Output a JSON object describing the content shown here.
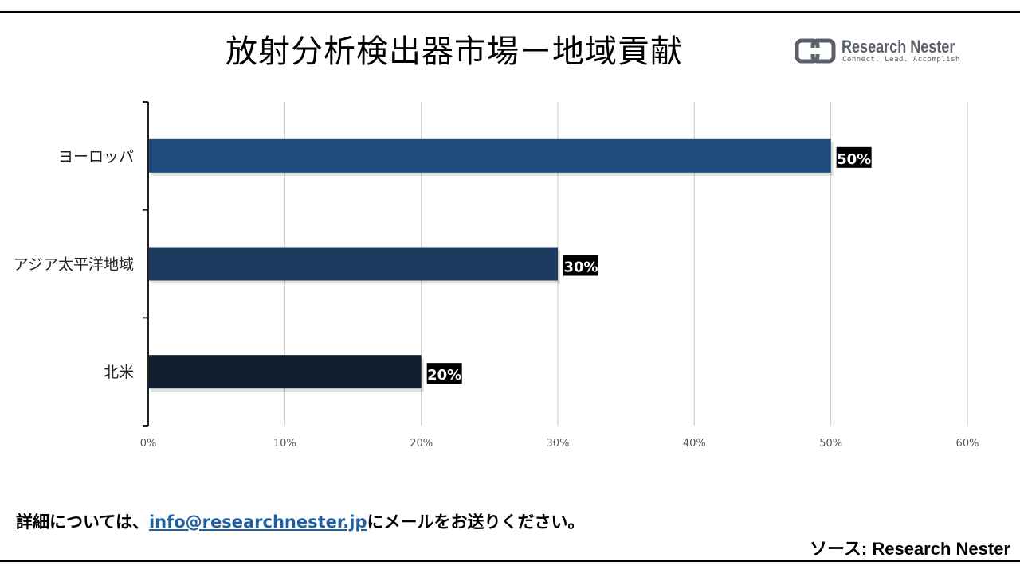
{
  "header": {
    "title": "放射分析検出器市場ー地域貢献",
    "logo_name": "Research Nester",
    "logo_tagline": "Connect. Lead. Accomplish"
  },
  "chart_data": {
    "type": "bar",
    "orientation": "horizontal",
    "categories": [
      "ヨーロッパ",
      "アジア太平洋地域",
      "北米"
    ],
    "values": [
      50,
      30,
      20
    ],
    "data_labels": [
      "50%",
      "30%",
      "20%"
    ],
    "bar_colors": [
      "#1f4e7e",
      "#1a3a5e",
      "#0f1f30"
    ],
    "xlim": [
      0,
      60
    ],
    "xticks": [
      "0%",
      "10%",
      "20%",
      "30%",
      "40%",
      "50%",
      "60%"
    ],
    "grid": true,
    "legend": "none"
  },
  "footer": {
    "note_prefix": "詳細については、",
    "email": "info@researchnester.jp",
    "note_suffix": "にメールをお送りください。",
    "source": "ソース: Research Nester"
  }
}
